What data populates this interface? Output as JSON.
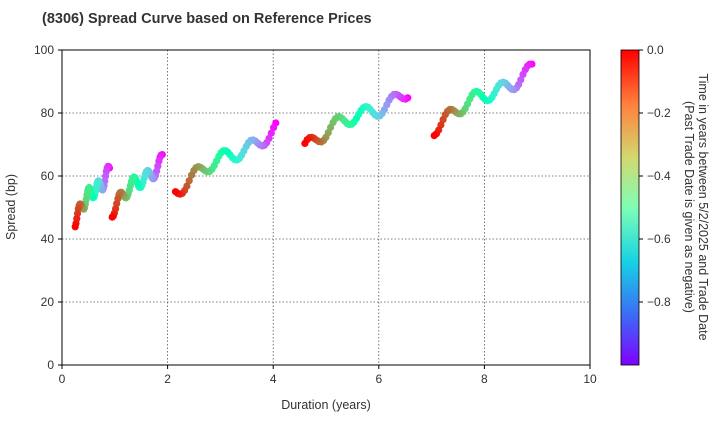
{
  "chart_data": {
    "type": "scatter",
    "title": "(8306)   Spread Curve based on Reference Prices",
    "xlabel": "Duration (years)",
    "ylabel": "Spread (bp)",
    "xlim": [
      0,
      10
    ],
    "ylim": [
      0,
      100
    ],
    "xticks": [
      0,
      2,
      4,
      6,
      8,
      10
    ],
    "yticks": [
      0,
      20,
      40,
      60,
      80,
      100
    ],
    "grid": true,
    "colorbar": {
      "label_line1": "Time in years between 5/2/2025 and Trade Date",
      "label_line2": "(Past Trade Date is given as negative)",
      "range": [
        -1.0,
        0.0
      ],
      "ticks": [
        0.0,
        -0.2,
        -0.4,
        -0.6,
        -0.8
      ],
      "tick_labels": [
        "0.0",
        "−0.2",
        "−0.4",
        "−0.6",
        "−0.8"
      ],
      "colormap": "rainbow"
    },
    "series": [
      {
        "x": [
          0.25,
          0.9
        ],
        "y": [
          47,
          62
        ],
        "t_oldest": -1.0,
        "t_newest": 0.0
      },
      {
        "x": [
          0.95,
          1.9
        ],
        "y": [
          50,
          65
        ],
        "t_oldest": -1.0,
        "t_newest": 0.0
      },
      {
        "x": [
          2.15,
          4.05
        ],
        "y": [
          56,
          75
        ],
        "t_oldest": -1.0,
        "t_newest": 0.0
      },
      {
        "x": [
          4.6,
          6.55
        ],
        "y": [
          70,
          87
        ],
        "t_oldest": -1.0,
        "t_newest": 0.0
      },
      {
        "x": [
          7.05,
          8.9
        ],
        "y": [
          76,
          94
        ],
        "t_oldest": -1.0,
        "t_newest": 0.0
      }
    ]
  }
}
